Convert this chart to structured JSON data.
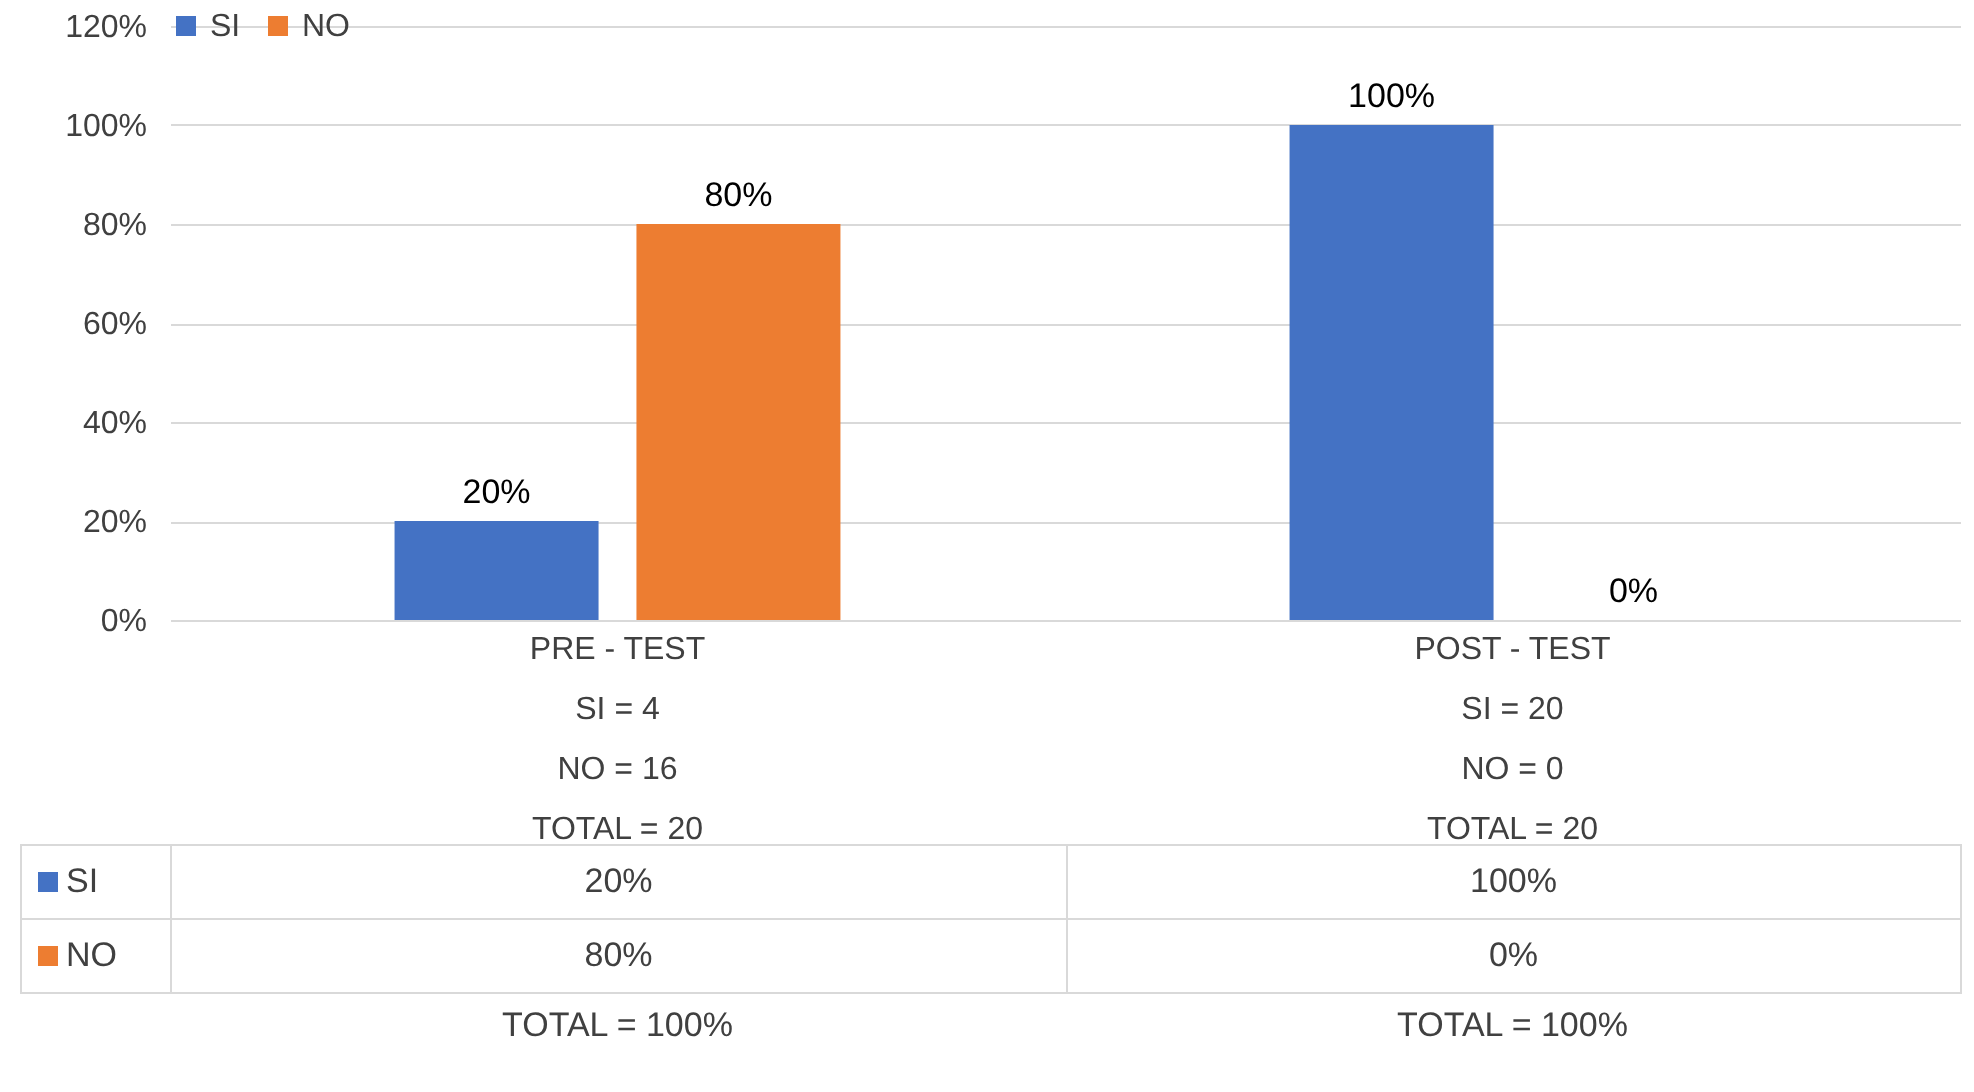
{
  "chart_data": {
    "type": "bar",
    "categories": [
      "PRE - TEST\nSI  =  4\nNO  =  16\nTOTAL  =  20",
      "POST - TEST\nSI  =  20\nNO = 0\nTOTAL  =  20"
    ],
    "series": [
      {
        "name": "SI",
        "color": "#4472c4",
        "values": [
          20,
          100
        ],
        "value_labels": [
          "20%",
          "100%"
        ]
      },
      {
        "name": "NO",
        "color": "#ed7d31",
        "values": [
          80,
          0
        ],
        "value_labels": [
          "80%",
          "0%"
        ]
      }
    ],
    "ylim": [
      0,
      120
    ],
    "yticks": [
      {
        "value": 0,
        "label": "0%"
      },
      {
        "value": 20,
        "label": "20%"
      },
      {
        "value": 40,
        "label": "40%"
      },
      {
        "value": 60,
        "label": "60%"
      },
      {
        "value": 80,
        "label": "80%"
      },
      {
        "value": 100,
        "label": "100%"
      },
      {
        "value": 120,
        "label": "120%"
      }
    ],
    "grid": "y",
    "legend": "top",
    "annotations": [
      "TOTAL = 100%",
      "TOTAL = 100%"
    ]
  }
}
